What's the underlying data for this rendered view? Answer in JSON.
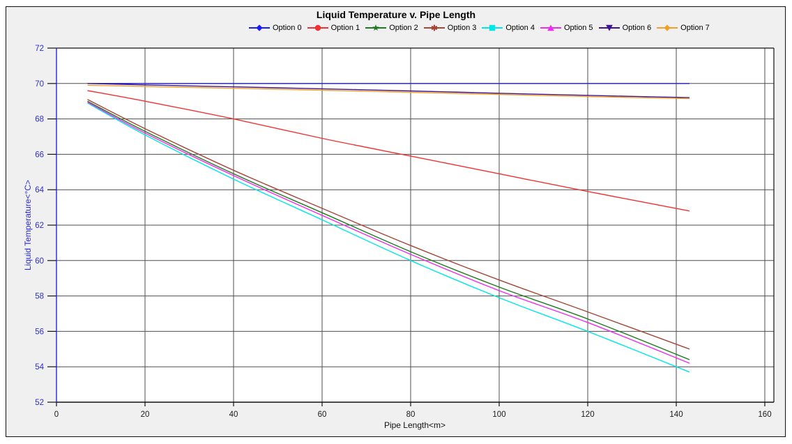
{
  "chart_data": {
    "type": "line",
    "title": "Liquid Temperature v. Pipe Length",
    "xlabel": "Pipe Length<m>",
    "ylabel": "Liquid Temperature<°C>",
    "xlim": [
      0,
      160
    ],
    "ylim": [
      52,
      72
    ],
    "x_ticks": [
      0,
      20,
      40,
      60,
      80,
      100,
      120,
      140,
      160
    ],
    "y_ticks": [
      52,
      54,
      56,
      58,
      60,
      62,
      64,
      66,
      68,
      70,
      72
    ],
    "grid": true,
    "legend_position": "top-center",
    "x": [
      7,
      20,
      40,
      60,
      80,
      100,
      120,
      143
    ],
    "series": [
      {
        "name": "Option 0",
        "color": "#1a1aff",
        "marker": "diamond",
        "values": [
          70,
          70,
          70,
          70,
          70,
          70,
          70,
          70
        ]
      },
      {
        "name": "Option 1",
        "color": "#f03232",
        "marker": "circle",
        "values": [
          69.6,
          69.0,
          68.0,
          66.9,
          65.9,
          64.9,
          63.9,
          62.8
        ]
      },
      {
        "name": "Option 2",
        "color": "#1e7a1e",
        "marker": "star",
        "values": [
          69.0,
          67.3,
          64.9,
          62.7,
          60.5,
          58.5,
          56.7,
          54.4
        ]
      },
      {
        "name": "Option 3",
        "color": "#a44638",
        "marker": "asterisk",
        "values": [
          69.1,
          67.45,
          65.1,
          62.95,
          60.85,
          58.9,
          57.1,
          55.0
        ]
      },
      {
        "name": "Option 4",
        "color": "#00e6e6",
        "marker": "square",
        "values": [
          68.9,
          67.1,
          64.6,
          62.3,
          60.0,
          57.9,
          56.0,
          53.7
        ]
      },
      {
        "name": "Option 5",
        "color": "#ef2bef",
        "marker": "triangle-up",
        "values": [
          68.95,
          67.2,
          64.8,
          62.55,
          60.35,
          58.3,
          56.5,
          54.2
        ]
      },
      {
        "name": "Option 6",
        "color": "#3f1690",
        "marker": "triangle-down",
        "values": [
          70.0,
          69.92,
          69.81,
          69.7,
          69.58,
          69.45,
          69.33,
          69.2
        ]
      },
      {
        "name": "Option 7",
        "color": "#efa02a",
        "marker": "diamond",
        "values": [
          69.9,
          69.83,
          69.73,
          69.62,
          69.5,
          69.38,
          69.26,
          69.15
        ]
      }
    ]
  },
  "colors": {
    "canvas_background": "#f0f0f0",
    "plot_background": "#ffffff",
    "grid": "#4d4d4d",
    "frame": "#111111",
    "y_axis": "#3c3cf2",
    "y_tick_label": "#2d2dd2",
    "x_tick_label": "#1a1a1a"
  }
}
